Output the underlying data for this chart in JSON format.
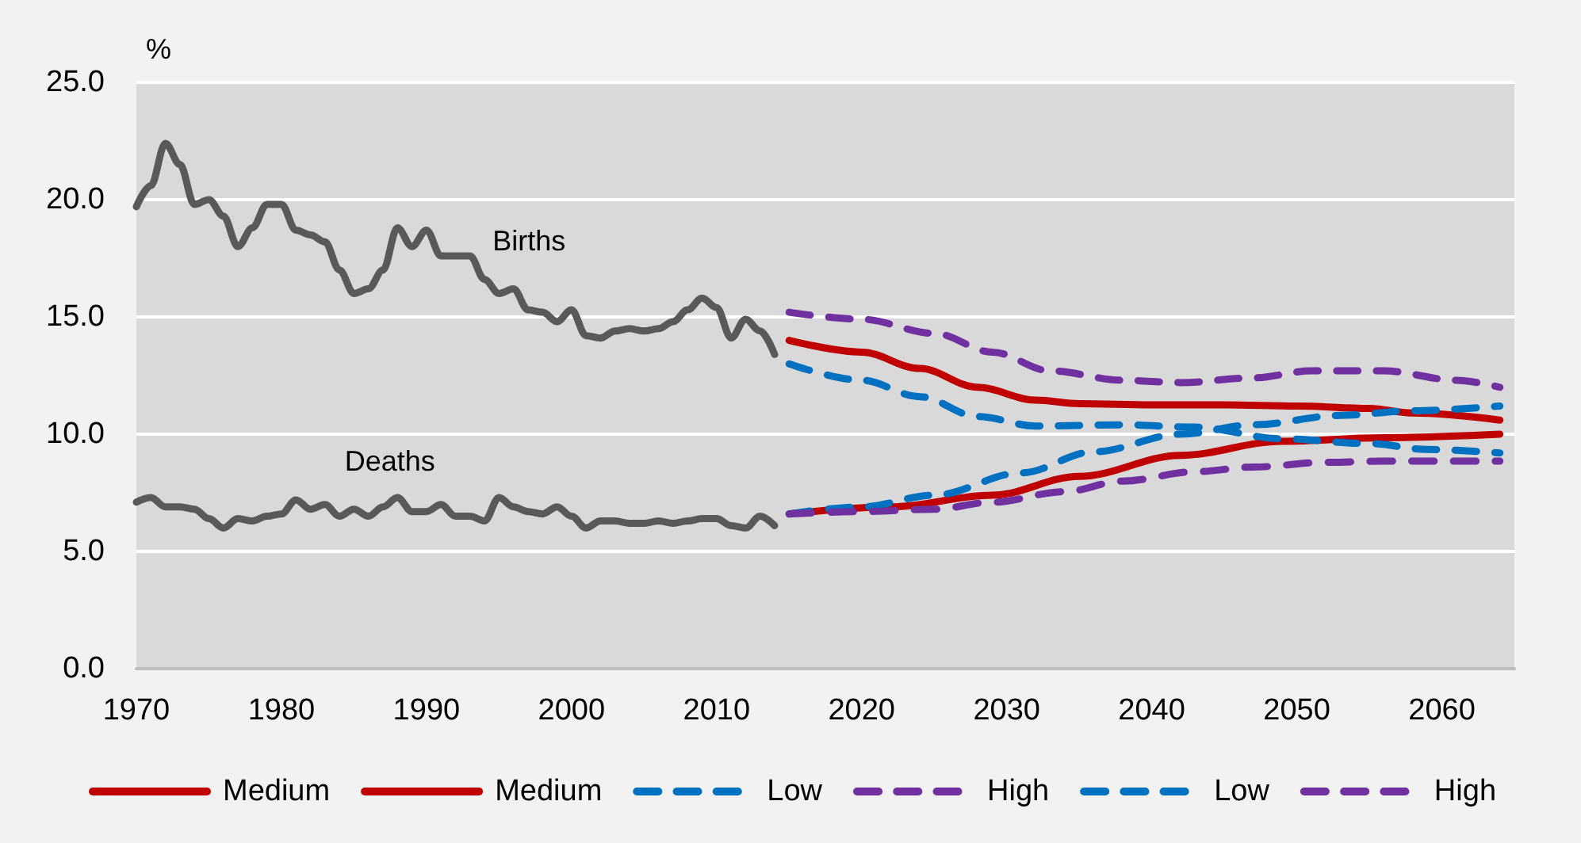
{
  "chart_data": {
    "type": "line",
    "ylabel": "%",
    "series": [
      {
        "color": "#595959",
        "x": [
          1970,
          1971,
          1972,
          1973,
          1974,
          1975,
          1976,
          1977,
          1978,
          1979,
          1980,
          1981,
          1982,
          1983,
          1984,
          1985,
          1986,
          1987,
          1988,
          1989,
          1990,
          1991,
          1992,
          1993,
          1994,
          1995,
          1996,
          1997,
          1998,
          1999,
          2000,
          2001,
          2002,
          2003,
          2004,
          2005,
          2006,
          2007,
          2008,
          2009,
          2010,
          2011,
          2012,
          2013,
          2014
        ],
        "values": [
          19.7,
          20.6,
          22.4,
          21.5,
          19.8,
          20.0,
          19.3,
          18.0,
          18.8,
          19.8,
          19.8,
          18.7,
          18.5,
          18.2,
          17.0,
          16.0,
          16.2,
          17.0,
          18.8,
          18.0,
          18.7,
          17.6,
          17.6,
          17.6,
          16.6,
          16.0,
          16.2,
          15.3,
          15.2,
          14.8,
          15.3,
          14.2,
          14.1,
          14.4,
          14.5,
          14.4,
          14.5,
          14.8,
          15.3,
          15.8,
          15.4,
          14.1,
          14.9,
          14.4,
          13.4
        ]
      },
      {
        "color": "#595959",
        "x": [
          1970,
          1971,
          1972,
          1973,
          1974,
          1975,
          1976,
          1977,
          1978,
          1979,
          1980,
          1981,
          1982,
          1983,
          1984,
          1985,
          1986,
          1987,
          1988,
          1989,
          1990,
          1991,
          1992,
          1993,
          1994,
          1995,
          1996,
          1997,
          1998,
          1999,
          2000,
          2001,
          2002,
          2003,
          2004,
          2005,
          2006,
          2007,
          2008,
          2009,
          2010,
          2011,
          2012,
          2013,
          2014
        ],
        "values": [
          7.1,
          7.3,
          6.9,
          6.9,
          6.8,
          6.4,
          6.0,
          6.4,
          6.3,
          6.5,
          6.6,
          7.2,
          6.8,
          7.0,
          6.5,
          6.8,
          6.5,
          6.9,
          7.3,
          6.7,
          6.7,
          7.0,
          6.5,
          6.5,
          6.3,
          7.3,
          6.9,
          6.7,
          6.6,
          6.9,
          6.5,
          6.0,
          6.3,
          6.3,
          6.2,
          6.2,
          6.3,
          6.2,
          6.3,
          6.4,
          6.4,
          6.1,
          6.0,
          6.5,
          6.1
        ]
      },
      {
        "name": "Medium",
        "color": "#c00000",
        "line_style": "solid",
        "x": [
          2015,
          2020,
          2024,
          2028,
          2032,
          2035,
          2040,
          2045,
          2050,
          2055,
          2058,
          2064
        ],
        "values": [
          14.0,
          13.5,
          12.8,
          12.0,
          11.45,
          11.3,
          11.25,
          11.25,
          11.2,
          11.1,
          10.9,
          10.6
        ]
      },
      {
        "name": "Medium",
        "color": "#c00000",
        "line_style": "solid",
        "x": [
          2015,
          2022,
          2029,
          2035,
          2042,
          2049,
          2056,
          2064
        ],
        "values": [
          6.6,
          6.9,
          7.4,
          8.2,
          9.1,
          9.7,
          9.85,
          10.0
        ]
      },
      {
        "name": "Low",
        "color": "#0070c0",
        "line_style": "dashed",
        "x": [
          2015,
          2020,
          2024,
          2028,
          2032,
          2038,
          2043,
          2049,
          2055,
          2059,
          2064
        ],
        "values": [
          13.0,
          12.3,
          11.6,
          10.75,
          10.35,
          10.4,
          10.3,
          9.8,
          9.6,
          9.35,
          9.2
        ]
      },
      {
        "name": "High",
        "color": "#7030a0",
        "line_style": "dashed",
        "x": [
          2015,
          2020,
          2025,
          2029,
          2033,
          2038,
          2042,
          2047,
          2051,
          2056,
          2061,
          2064
        ],
        "values": [
          15.2,
          14.9,
          14.3,
          13.5,
          12.7,
          12.3,
          12.2,
          12.4,
          12.7,
          12.7,
          12.3,
          12.0
        ]
      },
      {
        "name": "Low",
        "color": "#0070c0",
        "line_style": "dashed",
        "x": [
          2015,
          2020,
          2025,
          2031,
          2036,
          2042,
          2047,
          2053,
          2058,
          2064
        ],
        "values": [
          6.6,
          6.9,
          7.4,
          8.35,
          9.25,
          10.0,
          10.4,
          10.8,
          11.0,
          11.2
        ]
      },
      {
        "name": "High",
        "color": "#7030a0",
        "line_style": "dashed",
        "x": [
          2015,
          2020,
          2025,
          2029,
          2034,
          2038,
          2043,
          2047,
          2052,
          2056,
          2061,
          2064
        ],
        "values": [
          6.6,
          6.7,
          6.8,
          7.1,
          7.55,
          8.0,
          8.4,
          8.6,
          8.8,
          8.85,
          8.85,
          8.85
        ]
      }
    ],
    "annotations": [
      "Births",
      "Deaths"
    ],
    "xlim": [
      1970,
      2065
    ],
    "xticks": [
      1970,
      1980,
      1990,
      2000,
      2010,
      2020,
      2030,
      2040,
      2050,
      2060
    ],
    "ylim": [
      0,
      25
    ],
    "yticks": [
      {
        "value": 0,
        "label": "0.0"
      },
      {
        "value": 5,
        "label": "5.0"
      },
      {
        "value": 10,
        "label": "10.0"
      },
      {
        "value": 15,
        "label": "15.0"
      },
      {
        "value": 20,
        "label": "20.0"
      },
      {
        "value": 25,
        "label": "25.0"
      }
    ],
    "grid": "y",
    "legend": "bottom",
    "marker": "none",
    "line_style": "solid"
  }
}
